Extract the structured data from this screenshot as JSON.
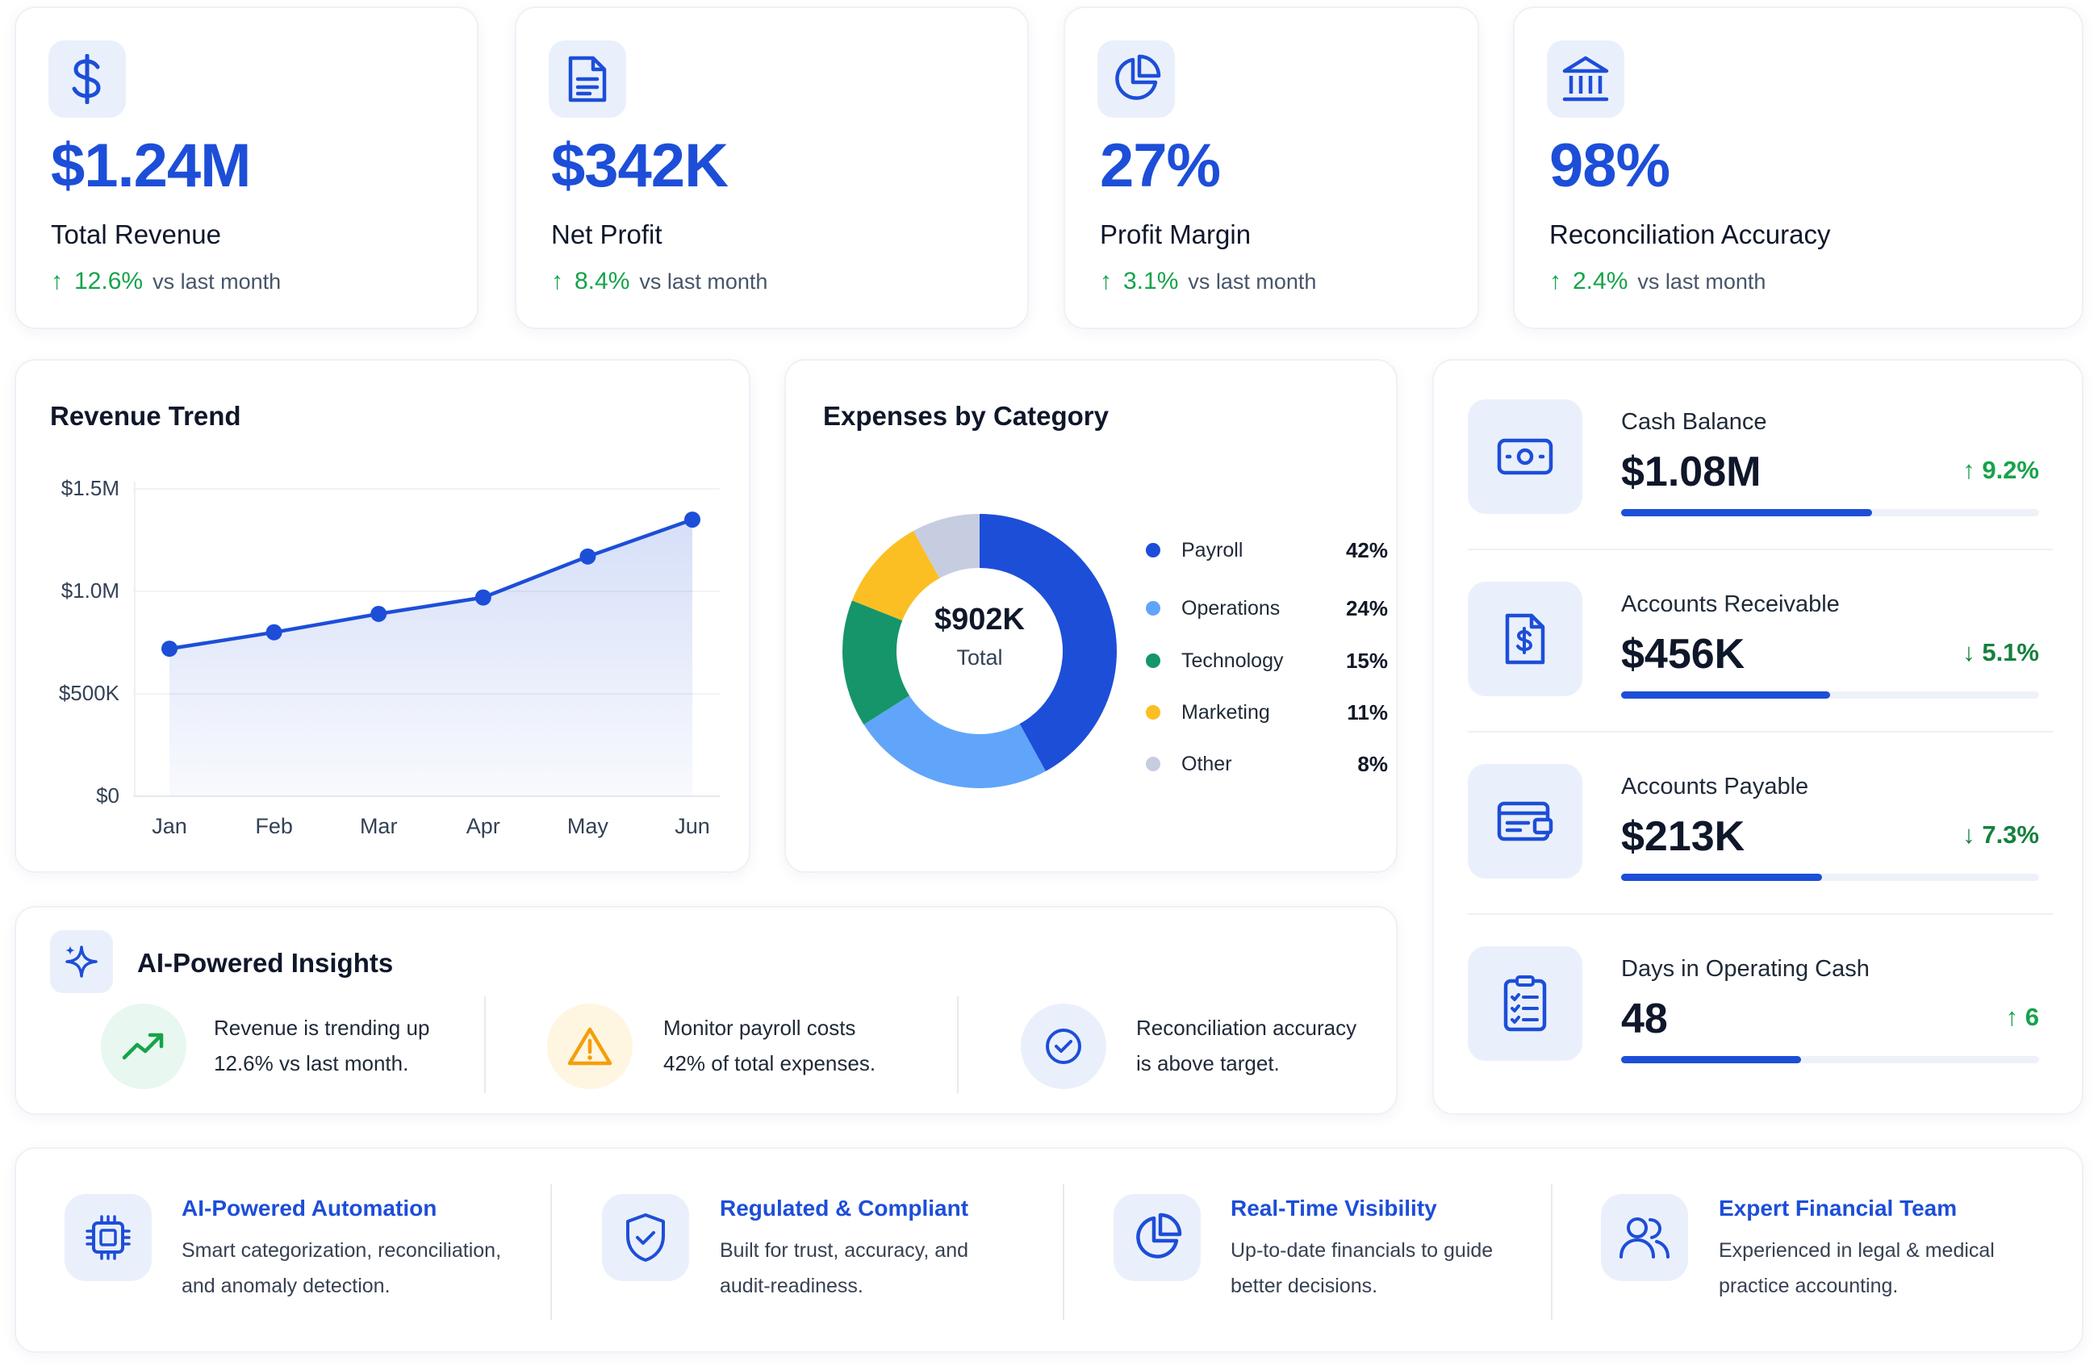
{
  "colors": {
    "accent": "#1d4ed8",
    "positive": "#16a34a",
    "icon_bg": "#eaf0fb"
  },
  "kpis": [
    {
      "icon": "dollar-icon",
      "value": "$1.24M",
      "label": "Total Revenue",
      "change": "12.6%",
      "suffix": "vs last month"
    },
    {
      "icon": "document-icon",
      "value": "$342K",
      "label": "Net Profit",
      "change": "8.4%",
      "suffix": "vs last month"
    },
    {
      "icon": "pie-icon",
      "value": "27%",
      "label": "Profit Margin",
      "change": "3.1%",
      "suffix": "vs last month"
    },
    {
      "icon": "bank-icon",
      "value": "98%",
      "label": "Reconciliation Accuracy",
      "change": "2.4%",
      "suffix": "vs last month"
    }
  ],
  "revenue_trend": {
    "title": "Revenue Trend"
  },
  "expenses": {
    "title": "Expenses by Category",
    "total_value": "$902K",
    "total_label": "Total"
  },
  "chart_data": [
    {
      "type": "area",
      "title": "Revenue Trend",
      "categories": [
        "Jan",
        "Feb",
        "Mar",
        "Apr",
        "May",
        "Jun"
      ],
      "values": [
        720000,
        800000,
        890000,
        970000,
        1170000,
        1350000
      ],
      "ylim": [
        0,
        1500000
      ],
      "yticks": [
        "$0",
        "$500K",
        "$1.0M",
        "$1.5M"
      ],
      "grid": true,
      "color": "#1d4ed8"
    },
    {
      "type": "pie",
      "title": "Expenses by Category",
      "slices": [
        {
          "name": "Payroll",
          "value": 42,
          "label": "42%",
          "color": "#1d4ed8"
        },
        {
          "name": "Operations",
          "value": 24,
          "label": "24%",
          "color": "#60a5fa"
        },
        {
          "name": "Technology",
          "value": 15,
          "label": "15%",
          "color": "#16956a"
        },
        {
          "name": "Marketing",
          "value": 11,
          "label": "11%",
          "color": "#fbbf24"
        },
        {
          "name": "Other",
          "value": 8,
          "label": "8%",
          "color": "#c7cde0"
        }
      ],
      "legend": "right"
    }
  ],
  "metrics": [
    {
      "icon": "cash-icon",
      "label": "Cash Balance",
      "value": "$1.08M",
      "change": "↑ 9.2%",
      "progress": 0.6
    },
    {
      "icon": "invoice-icon",
      "label": "Accounts Receivable",
      "value": "$456K",
      "change": "↓ 5.1%",
      "progress": 0.5
    },
    {
      "icon": "card-icon",
      "label": "Accounts Payable",
      "value": "$213K",
      "change": "↓ 7.3%",
      "progress": 0.48
    },
    {
      "icon": "checklist-icon",
      "label": "Days in Operating Cash",
      "value": "48",
      "change": "↑ 6",
      "progress": 0.43
    }
  ],
  "insights": {
    "title": "AI-Powered Insights",
    "items": [
      {
        "icon": "trending-up-icon",
        "line1": "Revenue is trending up",
        "line2": "12.6% vs last month."
      },
      {
        "icon": "warning-icon",
        "line1": "Monitor payroll costs",
        "line2": "42% of total expenses."
      },
      {
        "icon": "check-circle-icon",
        "line1": "Reconciliation accuracy",
        "line2": "is above target."
      }
    ]
  },
  "features": [
    {
      "icon": "chip-icon",
      "title": "AI-Powered Automation",
      "line1": "Smart categorization, reconciliation,",
      "line2": "and anomaly detection."
    },
    {
      "icon": "shield-check-icon",
      "title": "Regulated & Compliant",
      "line1": "Built for trust, accuracy, and",
      "line2": "audit-readiness."
    },
    {
      "icon": "pie-icon",
      "title": "Real-Time Visibility",
      "line1": "Up-to-date financials to guide",
      "line2": "better decisions."
    },
    {
      "icon": "team-icon",
      "title": "Expert Financial Team",
      "line1": "Experienced in legal & medical",
      "line2": "practice accounting."
    }
  ]
}
